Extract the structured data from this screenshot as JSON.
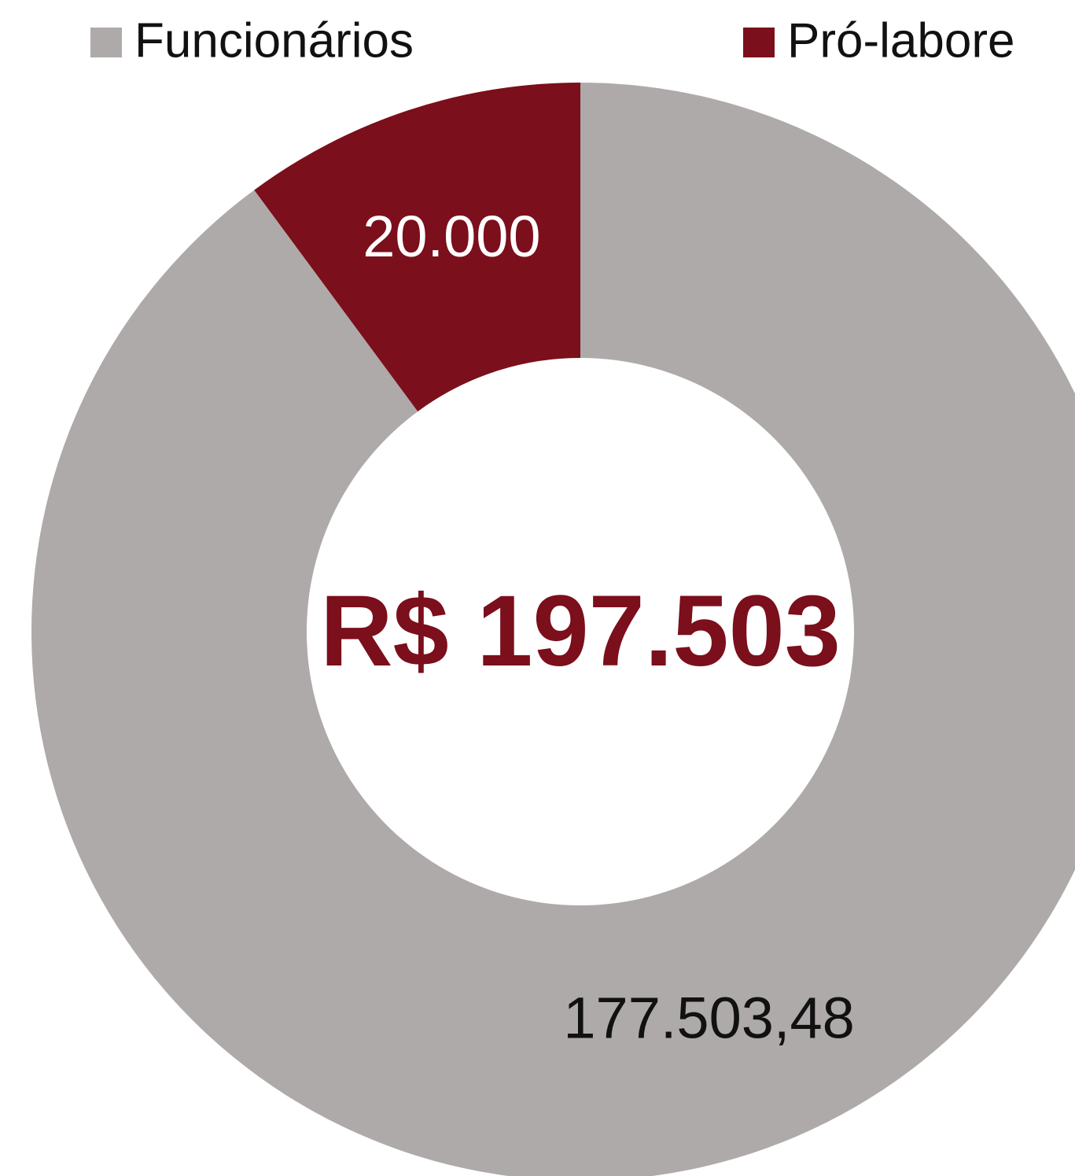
{
  "chart_data": {
    "type": "pie",
    "donut": true,
    "categories": [
      "Funcionários",
      "Pró-labore"
    ],
    "values": [
      177503.48,
      20000
    ],
    "value_labels": [
      "177.503,48",
      "20.000"
    ],
    "colors": [
      "#aeaaa9",
      "#7b0f1b"
    ],
    "value_label_colors": [
      "#111111",
      "#ffffff"
    ],
    "center_text": "R$ 197.503"
  }
}
